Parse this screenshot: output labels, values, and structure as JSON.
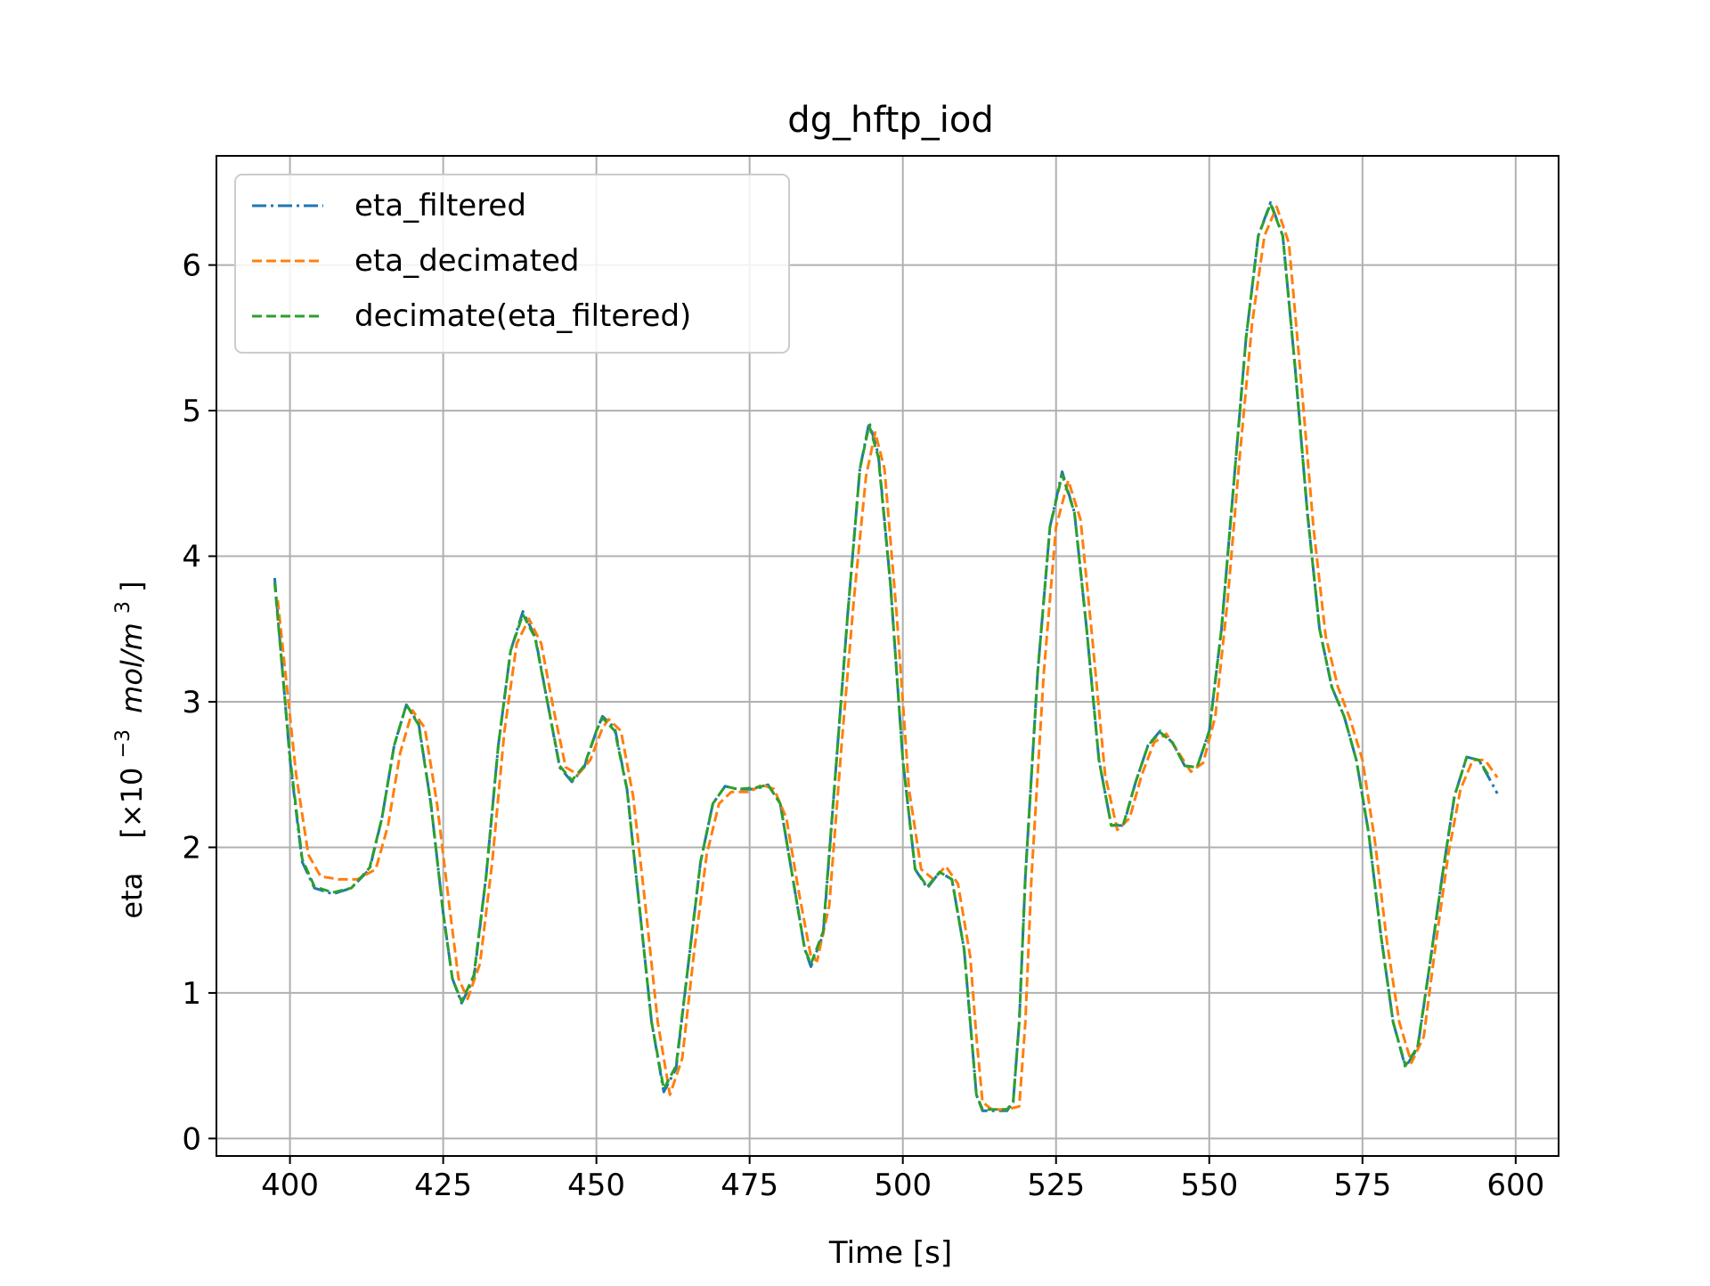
{
  "chart_data": {
    "type": "line",
    "title": "dg_hftp_iod",
    "xlabel": "Time [s]",
    "ylabel": {
      "name": "eta",
      "unit_prefix": "[×10",
      "exponent": "−3",
      "unit": "mol/m",
      "unit_exponent": "3",
      "close": "]"
    },
    "xlim": [
      388,
      607
    ],
    "ylim": [
      -0.12,
      6.75
    ],
    "xticks": [
      400,
      425,
      450,
      475,
      500,
      525,
      550,
      575,
      600
    ],
    "yticks": [
      0,
      1,
      2,
      3,
      4,
      5,
      6
    ],
    "grid": true,
    "legend_position": "top-left",
    "series": [
      {
        "name": "eta_filtered",
        "color": "#1f77b4",
        "dash": "dashdot",
        "points": [
          [
            397.5,
            3.85
          ],
          [
            400,
            2.6
          ],
          [
            402,
            1.9
          ],
          [
            404,
            1.72
          ],
          [
            407,
            1.68
          ],
          [
            410,
            1.72
          ],
          [
            413,
            1.85
          ],
          [
            415,
            2.2
          ],
          [
            417,
            2.7
          ],
          [
            419,
            2.98
          ],
          [
            421,
            2.85
          ],
          [
            423,
            2.3
          ],
          [
            425,
            1.55
          ],
          [
            426.5,
            1.1
          ],
          [
            428,
            0.93
          ],
          [
            430,
            1.1
          ],
          [
            432,
            1.8
          ],
          [
            434,
            2.7
          ],
          [
            436,
            3.35
          ],
          [
            438,
            3.62
          ],
          [
            440,
            3.45
          ],
          [
            442,
            3.0
          ],
          [
            444,
            2.55
          ],
          [
            446,
            2.45
          ],
          [
            448,
            2.55
          ],
          [
            450,
            2.8
          ],
          [
            451,
            2.9
          ],
          [
            453,
            2.82
          ],
          [
            455,
            2.4
          ],
          [
            457,
            1.6
          ],
          [
            459,
            0.8
          ],
          [
            461,
            0.32
          ],
          [
            463,
            0.48
          ],
          [
            465,
            1.2
          ],
          [
            467,
            1.9
          ],
          [
            469,
            2.3
          ],
          [
            471,
            2.42
          ],
          [
            473,
            2.4
          ],
          [
            476,
            2.4
          ],
          [
            478,
            2.43
          ],
          [
            480,
            2.3
          ],
          [
            482,
            1.8
          ],
          [
            484,
            1.3
          ],
          [
            485,
            1.18
          ],
          [
            487,
            1.4
          ],
          [
            489,
            2.5
          ],
          [
            491,
            3.6
          ],
          [
            493,
            4.6
          ],
          [
            494.5,
            4.92
          ],
          [
            496,
            4.7
          ],
          [
            498,
            3.8
          ],
          [
            500,
            2.6
          ],
          [
            502,
            1.85
          ],
          [
            504,
            1.72
          ],
          [
            506,
            1.83
          ],
          [
            508,
            1.78
          ],
          [
            510,
            1.3
          ],
          [
            511,
            0.8
          ],
          [
            512,
            0.3
          ],
          [
            513,
            0.19
          ],
          [
            515,
            0.19
          ],
          [
            517,
            0.19
          ],
          [
            518,
            0.25
          ],
          [
            519,
            0.8
          ],
          [
            520,
            1.8
          ],
          [
            522,
            3.2
          ],
          [
            524,
            4.2
          ],
          [
            526,
            4.58
          ],
          [
            528,
            4.3
          ],
          [
            530,
            3.5
          ],
          [
            532,
            2.6
          ],
          [
            534,
            2.15
          ],
          [
            536,
            2.15
          ],
          [
            538,
            2.45
          ],
          [
            540,
            2.7
          ],
          [
            542,
            2.8
          ],
          [
            544,
            2.72
          ],
          [
            546,
            2.56
          ],
          [
            548,
            2.55
          ],
          [
            550,
            2.8
          ],
          [
            552,
            3.5
          ],
          [
            554,
            4.5
          ],
          [
            556,
            5.5
          ],
          [
            558,
            6.2
          ],
          [
            560,
            6.43
          ],
          [
            562,
            6.2
          ],
          [
            564,
            5.3
          ],
          [
            566,
            4.3
          ],
          [
            568,
            3.5
          ],
          [
            570,
            3.1
          ],
          [
            572,
            2.9
          ],
          [
            574,
            2.6
          ],
          [
            576,
            2.1
          ],
          [
            578,
            1.4
          ],
          [
            580,
            0.8
          ],
          [
            582,
            0.49
          ],
          [
            584,
            0.62
          ],
          [
            586,
            1.2
          ],
          [
            588,
            1.8
          ],
          [
            590,
            2.35
          ],
          [
            592,
            2.62
          ],
          [
            594,
            2.6
          ],
          [
            596,
            2.45
          ],
          [
            597,
            2.37
          ]
        ]
      },
      {
        "name": "eta_decimated",
        "color": "#ff7f0e",
        "dash": "dashed",
        "points": [
          [
            398,
            3.7
          ],
          [
            401,
            2.5
          ],
          [
            403,
            1.95
          ],
          [
            405,
            1.8
          ],
          [
            408,
            1.78
          ],
          [
            411,
            1.78
          ],
          [
            414,
            1.85
          ],
          [
            416,
            2.15
          ],
          [
            418,
            2.65
          ],
          [
            420,
            2.94
          ],
          [
            422,
            2.82
          ],
          [
            424,
            2.3
          ],
          [
            426,
            1.6
          ],
          [
            427.5,
            1.1
          ],
          [
            429,
            0.96
          ],
          [
            431,
            1.2
          ],
          [
            433,
            1.9
          ],
          [
            435,
            2.8
          ],
          [
            437,
            3.4
          ],
          [
            439,
            3.57
          ],
          [
            441,
            3.4
          ],
          [
            443,
            2.95
          ],
          [
            445,
            2.55
          ],
          [
            447,
            2.5
          ],
          [
            449,
            2.6
          ],
          [
            451,
            2.82
          ],
          [
            452,
            2.88
          ],
          [
            454,
            2.8
          ],
          [
            456,
            2.35
          ],
          [
            458,
            1.6
          ],
          [
            460,
            0.8
          ],
          [
            462,
            0.3
          ],
          [
            464,
            0.55
          ],
          [
            466,
            1.3
          ],
          [
            468,
            1.95
          ],
          [
            470,
            2.3
          ],
          [
            472,
            2.38
          ],
          [
            475,
            2.38
          ],
          [
            477,
            2.43
          ],
          [
            479,
            2.4
          ],
          [
            481,
            2.2
          ],
          [
            483,
            1.7
          ],
          [
            485,
            1.25
          ],
          [
            486,
            1.22
          ],
          [
            488,
            1.6
          ],
          [
            490,
            2.7
          ],
          [
            492,
            3.7
          ],
          [
            494,
            4.55
          ],
          [
            495.5,
            4.85
          ],
          [
            497,
            4.6
          ],
          [
            499,
            3.6
          ],
          [
            501,
            2.4
          ],
          [
            503,
            1.85
          ],
          [
            505,
            1.78
          ],
          [
            507,
            1.87
          ],
          [
            509,
            1.75
          ],
          [
            511,
            1.25
          ],
          [
            512,
            0.7
          ],
          [
            513,
            0.25
          ],
          [
            514.5,
            0.2
          ],
          [
            517,
            0.2
          ],
          [
            519,
            0.22
          ],
          [
            520,
            0.8
          ],
          [
            521,
            1.8
          ],
          [
            523,
            3.2
          ],
          [
            525,
            4.2
          ],
          [
            527,
            4.52
          ],
          [
            529,
            4.25
          ],
          [
            531,
            3.4
          ],
          [
            533,
            2.5
          ],
          [
            535,
            2.12
          ],
          [
            537,
            2.2
          ],
          [
            539,
            2.5
          ],
          [
            541,
            2.72
          ],
          [
            543,
            2.78
          ],
          [
            545,
            2.65
          ],
          [
            547,
            2.52
          ],
          [
            549,
            2.58
          ],
          [
            551,
            2.9
          ],
          [
            553,
            3.7
          ],
          [
            555,
            4.7
          ],
          [
            557,
            5.6
          ],
          [
            559,
            6.2
          ],
          [
            561,
            6.4
          ],
          [
            563,
            6.15
          ],
          [
            565,
            5.2
          ],
          [
            567,
            4.2
          ],
          [
            569,
            3.45
          ],
          [
            571,
            3.1
          ],
          [
            573,
            2.88
          ],
          [
            575,
            2.6
          ],
          [
            577,
            2.05
          ],
          [
            579,
            1.35
          ],
          [
            581,
            0.8
          ],
          [
            583,
            0.52
          ],
          [
            585,
            0.7
          ],
          [
            587,
            1.35
          ],
          [
            589,
            1.95
          ],
          [
            591,
            2.4
          ],
          [
            593,
            2.6
          ],
          [
            595,
            2.6
          ],
          [
            597,
            2.48
          ]
        ]
      },
      {
        "name": "decimate(eta_filtered)",
        "color": "#2ca02c",
        "dash": "dashed",
        "points": [
          [
            397.5,
            3.82
          ],
          [
            400,
            2.62
          ],
          [
            402,
            1.92
          ],
          [
            404,
            1.73
          ],
          [
            407,
            1.69
          ],
          [
            410,
            1.72
          ],
          [
            413,
            1.86
          ],
          [
            415,
            2.2
          ],
          [
            417,
            2.7
          ],
          [
            419,
            2.98
          ],
          [
            421,
            2.84
          ],
          [
            423,
            2.3
          ],
          [
            425,
            1.55
          ],
          [
            426.5,
            1.1
          ],
          [
            428,
            0.94
          ],
          [
            430,
            1.12
          ],
          [
            432,
            1.8
          ],
          [
            434,
            2.7
          ],
          [
            436,
            3.35
          ],
          [
            438,
            3.6
          ],
          [
            440,
            3.44
          ],
          [
            442,
            3.0
          ],
          [
            444,
            2.56
          ],
          [
            446,
            2.46
          ],
          [
            448,
            2.56
          ],
          [
            450,
            2.8
          ],
          [
            451,
            2.89
          ],
          [
            453,
            2.8
          ],
          [
            455,
            2.4
          ],
          [
            457,
            1.6
          ],
          [
            459,
            0.8
          ],
          [
            461,
            0.34
          ],
          [
            463,
            0.5
          ],
          [
            465,
            1.2
          ],
          [
            467,
            1.9
          ],
          [
            469,
            2.3
          ],
          [
            471,
            2.42
          ],
          [
            473,
            2.4
          ],
          [
            476,
            2.41
          ],
          [
            478,
            2.43
          ],
          [
            480,
            2.3
          ],
          [
            482,
            1.8
          ],
          [
            484,
            1.3
          ],
          [
            485,
            1.2
          ],
          [
            487,
            1.42
          ],
          [
            489,
            2.5
          ],
          [
            491,
            3.6
          ],
          [
            493,
            4.6
          ],
          [
            494.5,
            4.9
          ],
          [
            496,
            4.68
          ],
          [
            498,
            3.8
          ],
          [
            500,
            2.6
          ],
          [
            502,
            1.85
          ],
          [
            504,
            1.73
          ],
          [
            506,
            1.83
          ],
          [
            508,
            1.78
          ],
          [
            510,
            1.3
          ],
          [
            511,
            0.8
          ],
          [
            512,
            0.3
          ],
          [
            513,
            0.2
          ],
          [
            515,
            0.2
          ],
          [
            517,
            0.2
          ],
          [
            518,
            0.25
          ],
          [
            519,
            0.8
          ],
          [
            520,
            1.8
          ],
          [
            522,
            3.2
          ],
          [
            524,
            4.2
          ],
          [
            526,
            4.56
          ],
          [
            528,
            4.3
          ],
          [
            530,
            3.5
          ],
          [
            532,
            2.6
          ],
          [
            534,
            2.15
          ],
          [
            536,
            2.16
          ],
          [
            538,
            2.45
          ],
          [
            540,
            2.7
          ],
          [
            542,
            2.79
          ],
          [
            544,
            2.72
          ],
          [
            546,
            2.56
          ],
          [
            548,
            2.55
          ],
          [
            550,
            2.8
          ],
          [
            552,
            3.5
          ],
          [
            554,
            4.5
          ],
          [
            556,
            5.5
          ],
          [
            558,
            6.2
          ],
          [
            560,
            6.42
          ],
          [
            562,
            6.2
          ],
          [
            564,
            5.3
          ],
          [
            566,
            4.3
          ],
          [
            568,
            3.5
          ],
          [
            570,
            3.1
          ],
          [
            572,
            2.9
          ],
          [
            574,
            2.6
          ],
          [
            576,
            2.1
          ],
          [
            578,
            1.4
          ],
          [
            580,
            0.8
          ],
          [
            582,
            0.5
          ],
          [
            584,
            0.63
          ],
          [
            586,
            1.2
          ],
          [
            588,
            1.8
          ],
          [
            590,
            2.35
          ],
          [
            592,
            2.62
          ],
          [
            594,
            2.6
          ],
          [
            595.5,
            2.5
          ]
        ]
      }
    ]
  }
}
